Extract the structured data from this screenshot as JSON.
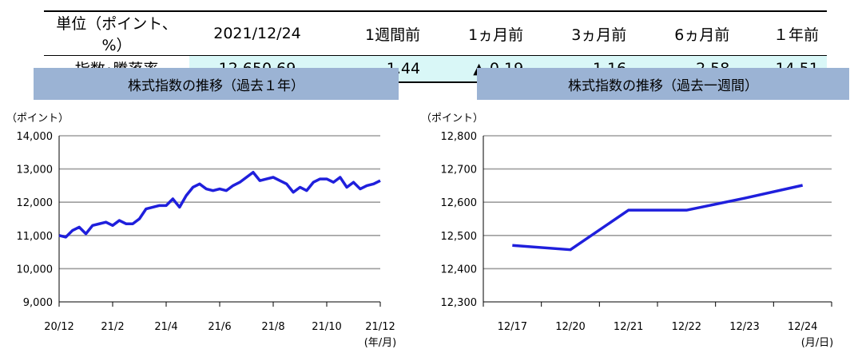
{
  "summary": {
    "headers": [
      "単位（ポイント、%）",
      "2021/12/24",
      "1週間前",
      "1ヵ月前",
      "3ヵ月前",
      "6ヵ月前",
      "１年前"
    ],
    "row_label": "指数･騰落率",
    "values": [
      "12,650.69",
      "1.44",
      "▲ 0.19",
      "1.16",
      "2.58",
      "14.51"
    ]
  },
  "colors": {
    "series": "#1f1fdc",
    "title_bg": "#9bb3d4",
    "highlight_bg": "#d9f7f7",
    "grid": "#9e9e9e"
  },
  "chart_data": [
    {
      "type": "line",
      "title": "株式指数の推移（過去１年）",
      "ylabel": "（ポイント）",
      "xlabel": "(年/月)",
      "ylim": [
        9000,
        14000
      ],
      "yticks": [
        9000,
        10000,
        11000,
        12000,
        13000,
        14000
      ],
      "ytick_labels": [
        "9,000",
        "10,000",
        "11,000",
        "12,000",
        "13,000",
        "14,000"
      ],
      "xtick_labels": [
        "20/12",
        "21/2",
        "21/4",
        "21/6",
        "21/8",
        "21/10",
        "21/12"
      ],
      "x_range": [
        0,
        12
      ],
      "grid": true,
      "series": [
        {
          "x": [
            0,
            0.25,
            0.5,
            0.75,
            1,
            1.25,
            1.5,
            1.75,
            2,
            2.25,
            2.5,
            2.75,
            3,
            3.25,
            3.5,
            3.75,
            4,
            4.25,
            4.5,
            4.75,
            5,
            5.25,
            5.5,
            5.75,
            6,
            6.25,
            6.5,
            6.75,
            7,
            7.25,
            7.5,
            7.75,
            8,
            8.25,
            8.5,
            8.75,
            9,
            9.25,
            9.5,
            9.75,
            10,
            10.25,
            10.5,
            10.75,
            11,
            11.25,
            11.5,
            11.75,
            12
          ],
          "y": [
            11000,
            10950,
            11150,
            11250,
            11050,
            11300,
            11350,
            11400,
            11300,
            11450,
            11350,
            11350,
            11500,
            11800,
            11850,
            11900,
            11900,
            12100,
            11850,
            12200,
            12450,
            12550,
            12400,
            12350,
            12400,
            12350,
            12500,
            12600,
            12750,
            12900,
            12650,
            12700,
            12750,
            12650,
            12550,
            12300,
            12450,
            12350,
            12600,
            12700,
            12700,
            12600,
            12750,
            12450,
            12600,
            12400,
            12500,
            12550,
            12650
          ]
        }
      ]
    },
    {
      "type": "line",
      "title": "株式指数の推移（過去一週間）",
      "ylabel": "（ポイント）",
      "xlabel": "(月/日)",
      "ylim": [
        12300,
        12800
      ],
      "yticks": [
        12300,
        12400,
        12500,
        12600,
        12700,
        12800
      ],
      "ytick_labels": [
        "12,300",
        "12,400",
        "12,500",
        "12,600",
        "12,700",
        "12,800"
      ],
      "categories": [
        "12/17",
        "12/20",
        "12/21",
        "12/22",
        "12/23",
        "12/24"
      ],
      "grid": true,
      "series": [
        {
          "values": [
            12470,
            12457,
            12576,
            12576,
            12612,
            12651
          ]
        }
      ]
    }
  ]
}
